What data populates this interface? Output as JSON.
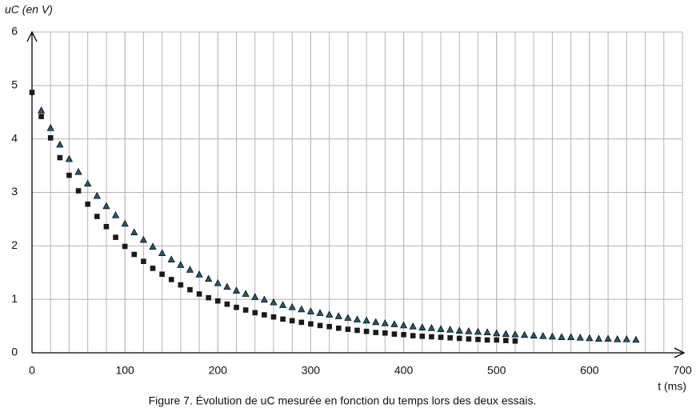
{
  "chart_data": {
    "type": "scatter",
    "title": "Figure 7. Évolution de uC mesurée en fonction du temps lors des deux essais.",
    "y_label": "uC (en V)",
    "x_label": "t (ms)",
    "xlim": [
      0,
      700
    ],
    "ylim": [
      0,
      6
    ],
    "xticks": [
      0,
      100,
      200,
      300,
      400,
      500,
      600,
      700
    ],
    "yticks": [
      0,
      1,
      2,
      3,
      4,
      5,
      6
    ],
    "grid": true,
    "x_grid_step": 20,
    "series": [
      {
        "marker": "square",
        "color": "#1a1a1a",
        "x": [
          0,
          10,
          20,
          30,
          40,
          50,
          60,
          70,
          80,
          90,
          100,
          110,
          120,
          130,
          140,
          150,
          160,
          170,
          180,
          190,
          200,
          210,
          220,
          230,
          240,
          250,
          260,
          270,
          280,
          290,
          300,
          310,
          320,
          330,
          340,
          350,
          360,
          370,
          380,
          390,
          400,
          410,
          420,
          430,
          440,
          450,
          460,
          470,
          480,
          490,
          500,
          510,
          520
        ],
        "values": [
          4.87,
          4.42,
          4.02,
          3.65,
          3.32,
          3.03,
          2.78,
          2.55,
          2.36,
          2.16,
          1.99,
          1.84,
          1.71,
          1.58,
          1.47,
          1.37,
          1.27,
          1.18,
          1.1,
          1.03,
          0.97,
          0.91,
          0.85,
          0.8,
          0.75,
          0.71,
          0.67,
          0.63,
          0.6,
          0.57,
          0.54,
          0.51,
          0.49,
          0.46,
          0.44,
          0.42,
          0.4,
          0.38,
          0.37,
          0.35,
          0.34,
          0.32,
          0.31,
          0.3,
          0.29,
          0.28,
          0.27,
          0.26,
          0.25,
          0.24,
          0.24,
          0.23,
          0.22
        ]
      },
      {
        "marker": "triangle",
        "color": "#24586b",
        "x": [
          10,
          20,
          30,
          40,
          50,
          60,
          70,
          80,
          90,
          100,
          110,
          120,
          130,
          140,
          150,
          160,
          170,
          180,
          190,
          200,
          210,
          220,
          230,
          240,
          250,
          260,
          270,
          280,
          290,
          300,
          310,
          320,
          330,
          340,
          350,
          360,
          370,
          380,
          390,
          400,
          410,
          420,
          430,
          440,
          450,
          460,
          470,
          480,
          490,
          500,
          510,
          520,
          530,
          540,
          550,
          560,
          570,
          580,
          590,
          600,
          610,
          620,
          630,
          640,
          650
        ],
        "values": [
          4.53,
          4.2,
          3.89,
          3.62,
          3.38,
          3.16,
          2.93,
          2.74,
          2.57,
          2.41,
          2.25,
          2.11,
          1.98,
          1.86,
          1.74,
          1.64,
          1.55,
          1.46,
          1.38,
          1.3,
          1.23,
          1.16,
          1.1,
          1.04,
          0.99,
          0.94,
          0.89,
          0.85,
          0.81,
          0.77,
          0.74,
          0.71,
          0.68,
          0.65,
          0.62,
          0.6,
          0.57,
          0.55,
          0.53,
          0.51,
          0.49,
          0.47,
          0.46,
          0.44,
          0.43,
          0.41,
          0.4,
          0.39,
          0.38,
          0.36,
          0.35,
          0.34,
          0.33,
          0.32,
          0.31,
          0.3,
          0.29,
          0.29,
          0.28,
          0.27,
          0.26,
          0.26,
          0.25,
          0.25,
          0.24
        ]
      }
    ]
  }
}
